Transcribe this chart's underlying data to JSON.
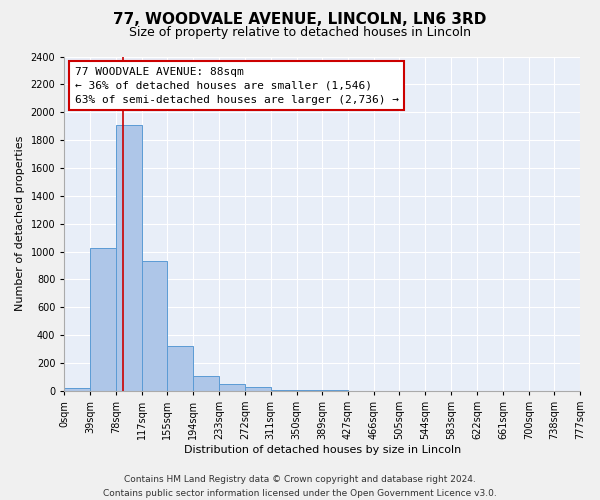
{
  "title": "77, WOODVALE AVENUE, LINCOLN, LN6 3RD",
  "subtitle": "Size of property relative to detached houses in Lincoln",
  "xlabel": "Distribution of detached houses by size in Lincoln",
  "ylabel": "Number of detached properties",
  "bin_edges": [
    0,
    39,
    78,
    117,
    155,
    194,
    233,
    272,
    311,
    350,
    389,
    427,
    466,
    505,
    544,
    583,
    622,
    661,
    700,
    738,
    777
  ],
  "bin_counts": [
    20,
    1025,
    1910,
    935,
    320,
    105,
    50,
    25,
    10,
    5,
    3,
    0,
    0,
    0,
    0,
    0,
    0,
    0,
    0,
    0
  ],
  "bar_color": "#aec6e8",
  "bar_edge_color": "#5b9bd5",
  "property_size": 88,
  "red_line_color": "#cc0000",
  "annotation_line1": "77 WOODVALE AVENUE: 88sqm",
  "annotation_line2": "← 36% of detached houses are smaller (1,546)",
  "annotation_line3": "63% of semi-detached houses are larger (2,736) →",
  "annotation_box_edge_color": "#cc0000",
  "ylim": [
    0,
    2400
  ],
  "yticks": [
    0,
    200,
    400,
    600,
    800,
    1000,
    1200,
    1400,
    1600,
    1800,
    2000,
    2200,
    2400
  ],
  "tick_labels": [
    "0sqm",
    "39sqm",
    "78sqm",
    "117sqm",
    "155sqm",
    "194sqm",
    "233sqm",
    "272sqm",
    "311sqm",
    "350sqm",
    "389sqm",
    "427sqm",
    "466sqm",
    "505sqm",
    "544sqm",
    "583sqm",
    "622sqm",
    "661sqm",
    "700sqm",
    "738sqm",
    "777sqm"
  ],
  "footer_line1": "Contains HM Land Registry data © Crown copyright and database right 2024.",
  "footer_line2": "Contains public sector information licensed under the Open Government Licence v3.0.",
  "fig_bg_color": "#f0f0f0",
  "plot_bg_color": "#e8eef8",
  "grid_color": "#ffffff",
  "title_fontsize": 11,
  "subtitle_fontsize": 9,
  "axis_label_fontsize": 8,
  "tick_fontsize": 7,
  "annotation_fontsize": 8,
  "footer_fontsize": 6.5
}
